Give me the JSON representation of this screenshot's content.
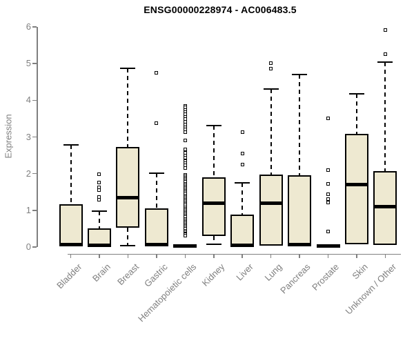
{
  "title": "ENSG00000228974 - AC006483.5",
  "colors": {
    "background": "#ffffff",
    "box_fill": "#EEE9D1",
    "box_border": "#000000",
    "median": "#000000",
    "whisker": "#000000",
    "axis": "#7f7f7f",
    "tick_label": "#7f7f7f",
    "title": "#000000"
  },
  "chart_data": {
    "type": "boxplot",
    "title": "ENSG00000228974 - AC006483.5",
    "xlabel": "",
    "ylabel": "Expression",
    "ylim": [
      0,
      6
    ],
    "yticks": [
      0,
      1,
      2,
      3,
      4,
      5,
      6
    ],
    "grid": false,
    "legend": false,
    "categories": [
      "Bladder",
      "Brain",
      "Breast",
      "Gastric",
      "Hematopoietic cells",
      "Kidney",
      "Liver",
      "Lung",
      "Pancreas",
      "Prostate",
      "Skin",
      "Unknown / Other"
    ],
    "series": [
      {
        "name": "Bladder",
        "whisker_low": 0.02,
        "q1": 0.02,
        "median": 0.06,
        "q3": 1.17,
        "whisker_high": 2.78,
        "outliers": []
      },
      {
        "name": "Brain",
        "whisker_low": 0.02,
        "q1": 0.02,
        "median": 0.05,
        "q3": 0.5,
        "whisker_high": 0.97,
        "outliers": [
          1.28,
          1.37,
          1.56,
          1.62,
          1.75,
          1.98
        ]
      },
      {
        "name": "Breast",
        "whisker_low": 0.03,
        "q1": 0.52,
        "median": 1.35,
        "q3": 2.72,
        "whisker_high": 4.88,
        "outliers": []
      },
      {
        "name": "Gastric",
        "whisker_low": 0.02,
        "q1": 0.02,
        "median": 0.06,
        "q3": 1.05,
        "whisker_high": 2.02,
        "outliers": [
          3.37,
          4.74
        ]
      },
      {
        "name": "Hematopoietic cells",
        "whisker_low": 0.01,
        "q1": 0.01,
        "median": 0.03,
        "q3": 0.05,
        "whisker_high": 0.05,
        "outliers": [
          3.85,
          3.8,
          3.74,
          3.68,
          3.62,
          3.55,
          3.48,
          3.41,
          3.34,
          3.27,
          3.2,
          3.14,
          2.91,
          2.66,
          2.57,
          2.5,
          2.44,
          2.35,
          2.28,
          2.22,
          2.16,
          1.97,
          1.93,
          1.89,
          1.85,
          1.81,
          1.77,
          1.73,
          1.69,
          1.65,
          1.61,
          1.57,
          1.53,
          1.49,
          1.45,
          1.41,
          1.37,
          1.33,
          1.29,
          1.25,
          1.21,
          1.17,
          1.13,
          1.09,
          1.05,
          1.01,
          0.97,
          0.93,
          0.89,
          0.85,
          0.81,
          0.77,
          0.73,
          0.69,
          0.65,
          0.61,
          0.57,
          0.53,
          0.49,
          0.45,
          0.41,
          0.37,
          0.34,
          0.31
        ]
      },
      {
        "name": "Kidney",
        "whisker_low": 0.08,
        "q1": 0.31,
        "median": 1.19,
        "q3": 1.9,
        "whisker_high": 3.31,
        "outliers": []
      },
      {
        "name": "Liver",
        "whisker_low": 0.02,
        "q1": 0.02,
        "median": 0.05,
        "q3": 0.89,
        "whisker_high": 1.75,
        "outliers": [
          2.24,
          2.54,
          3.14
        ]
      },
      {
        "name": "Lung",
        "whisker_low": 0.03,
        "q1": 0.03,
        "median": 1.2,
        "q3": 1.97,
        "whisker_high": 4.3,
        "outliers": [
          4.87,
          5.01
        ]
      },
      {
        "name": "Pancreas",
        "whisker_low": 0.02,
        "q1": 0.02,
        "median": 0.06,
        "q3": 1.95,
        "whisker_high": 4.7,
        "outliers": []
      },
      {
        "name": "Prostate",
        "whisker_low": 0.01,
        "q1": 0.01,
        "median": 0.03,
        "q3": 0.05,
        "whisker_high": 0.05,
        "outliers": [
          0.43,
          1.22,
          1.31,
          1.43,
          1.73,
          2.09,
          3.5
        ]
      },
      {
        "name": "Skin",
        "whisker_low": 0.08,
        "q1": 0.08,
        "median": 1.7,
        "q3": 3.08,
        "whisker_high": 4.17,
        "outliers": []
      },
      {
        "name": "Unknown / Other",
        "whisker_low": 0.06,
        "q1": 0.06,
        "median": 1.1,
        "q3": 2.06,
        "whisker_high": 5.05,
        "outliers": [
          5.26,
          5.92
        ]
      }
    ]
  }
}
